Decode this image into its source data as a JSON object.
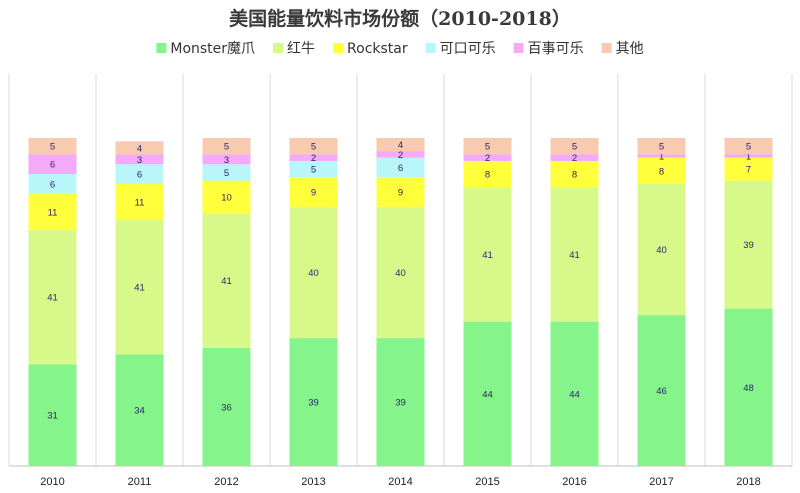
{
  "chart_data": {
    "type": "bar",
    "stacked": true,
    "title": "美国能量饮料市场份额（2010-2018）",
    "xlabel": "",
    "ylabel": "",
    "ylim": [
      0,
      100
    ],
    "grid": false,
    "legend_position": "top",
    "categories": [
      "2010",
      "2011",
      "2012",
      "2013",
      "2014",
      "2015",
      "2016",
      "2017",
      "2018"
    ],
    "series": [
      {
        "name": "Monster魔爪",
        "color": "#85f48a",
        "values": [
          31,
          34,
          36,
          39,
          39,
          44,
          44,
          46,
          48
        ]
      },
      {
        "name": "红牛",
        "color": "#d7f98a",
        "values": [
          41,
          41,
          41,
          40,
          40,
          41,
          41,
          40,
          39
        ]
      },
      {
        "name": "Rockstar",
        "color": "#ffff3c",
        "values": [
          11,
          11,
          10,
          9,
          9,
          8,
          8,
          8,
          7
        ]
      },
      {
        "name": "可口可乐",
        "color": "#b9f6fa",
        "values": [
          6,
          6,
          5,
          5,
          6,
          0,
          0,
          0,
          0
        ]
      },
      {
        "name": "百事可乐",
        "color": "#f4aaf7",
        "values": [
          6,
          3,
          3,
          2,
          2,
          2,
          2,
          1,
          1
        ]
      },
      {
        "name": "其他",
        "color": "#f8cbb1",
        "values": [
          5,
          4,
          5,
          5,
          4,
          5,
          5,
          5,
          5
        ]
      }
    ]
  }
}
